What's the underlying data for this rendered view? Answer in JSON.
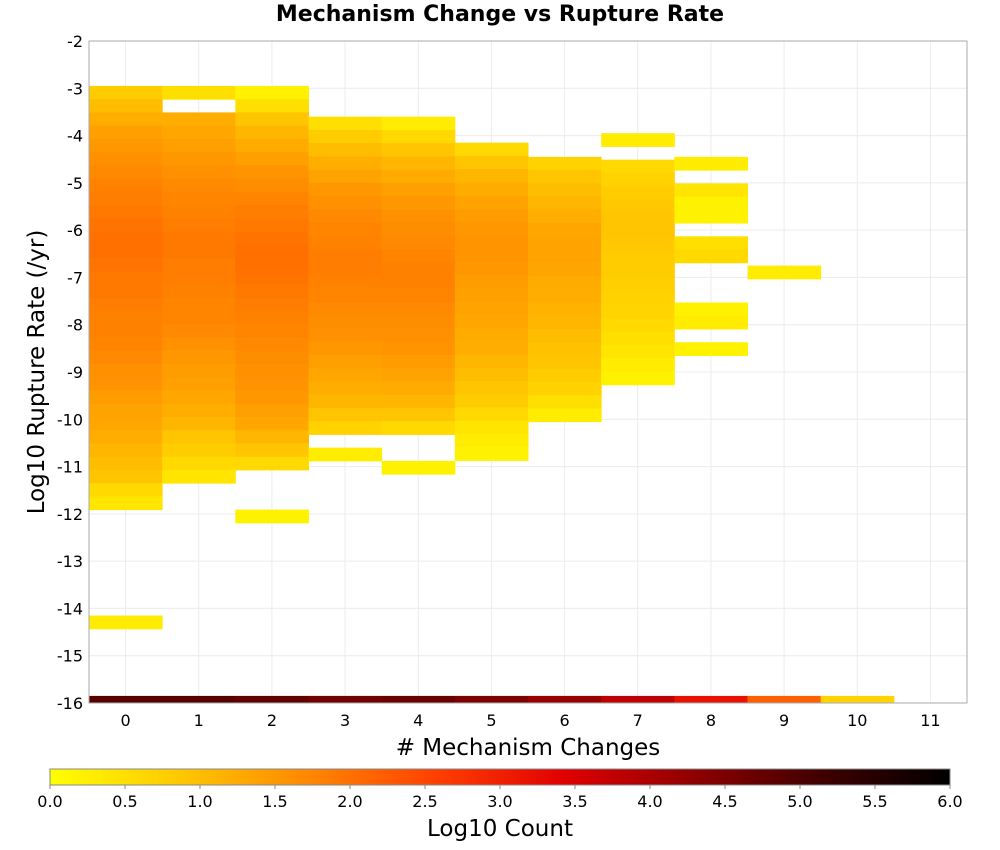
{
  "chart_data": {
    "type": "heatmap",
    "title": "Mechanism Change vs Rupture Rate",
    "xlabel": "# Mechanism Changes",
    "ylabel": "Log10 Rupture Rate (/yr)",
    "xlim": [
      -0.5,
      11.5
    ],
    "ylim": [
      -16,
      -2
    ],
    "x_ticks": [
      0,
      1,
      2,
      3,
      4,
      5,
      6,
      7,
      8,
      9,
      10,
      11
    ],
    "y_ticks": [
      -2,
      -3,
      -4,
      -5,
      -6,
      -7,
      -8,
      -9,
      -10,
      -11,
      -12,
      -13,
      -14,
      -15,
      -16
    ],
    "y_bin_size": 0.28,
    "grid": true,
    "colorbar": {
      "label": "Log10 Count",
      "range": [
        0,
        6
      ],
      "ticks": [
        "0.0",
        "0.5",
        "1.0",
        "1.5",
        "2.0",
        "2.5",
        "3.0",
        "3.5",
        "4.0",
        "4.5",
        "5.0",
        "5.5",
        "6.0"
      ],
      "colormap": [
        "#ffff00",
        "#ffc800",
        "#ff8800",
        "#ff4000",
        "#e00000",
        "#900000",
        "#400000",
        "#000000"
      ]
    },
    "columns": [
      {
        "x": 0,
        "y_top": -2.95,
        "values": [
          0.8,
          1.0,
          1.2,
          1.4,
          1.5,
          1.6,
          1.7,
          1.8,
          1.85,
          1.9,
          1.95,
          2.0,
          2.0,
          1.95,
          1.9,
          1.9,
          1.85,
          1.8,
          1.8,
          1.75,
          1.7,
          1.6,
          1.55,
          1.45,
          1.35,
          1.3,
          1.2,
          1.1,
          1.0,
          0.9,
          0.6,
          0.4,
          null,
          null,
          null,
          null,
          null,
          null,
          null,
          null,
          0.3
        ],
        "bottom_row": 4.9
      },
      {
        "x": 1,
        "y_top": -2.95,
        "values": [
          0.5,
          null,
          1.2,
          1.3,
          1.4,
          1.5,
          1.6,
          1.7,
          1.75,
          1.8,
          1.85,
          1.9,
          1.9,
          1.85,
          1.85,
          1.8,
          1.75,
          1.75,
          1.7,
          1.6,
          1.5,
          1.45,
          1.4,
          1.3,
          1.2,
          1.1,
          0.9,
          0.8,
          0.6,
          0.4
        ],
        "bottom_row": 4.9
      },
      {
        "x": 2,
        "y_top": -2.95,
        "values": [
          0.2,
          0.5,
          0.9,
          1.1,
          1.25,
          1.4,
          1.55,
          1.65,
          1.75,
          1.85,
          1.9,
          1.95,
          2.0,
          2.0,
          1.95,
          1.9,
          1.85,
          1.8,
          1.75,
          1.7,
          1.65,
          1.6,
          1.55,
          1.5,
          1.4,
          1.3,
          1.1,
          0.9,
          0.6,
          null,
          null,
          null,
          0.2
        ],
        "bottom_row": 4.8
      },
      {
        "x": 3,
        "y_top": -3.6,
        "values": [
          0.5,
          0.8,
          1.0,
          1.2,
          1.35,
          1.5,
          1.6,
          1.7,
          1.75,
          1.8,
          1.85,
          1.85,
          1.8,
          1.75,
          1.7,
          1.65,
          1.6,
          1.5,
          1.4,
          1.3,
          1.2,
          1.1,
          0.9,
          0.7,
          null,
          0.3
        ],
        "bottom_row": 4.6
      },
      {
        "x": 4,
        "y_top": -3.6,
        "values": [
          0.3,
          0.6,
          0.9,
          1.1,
          1.25,
          1.4,
          1.5,
          1.6,
          1.65,
          1.7,
          1.75,
          1.8,
          1.8,
          1.75,
          1.7,
          1.65,
          1.6,
          1.55,
          1.45,
          1.35,
          1.25,
          1.1,
          0.9,
          0.6,
          null,
          null,
          0.2
        ],
        "bottom_row": 4.7
      },
      {
        "x": 5,
        "y_top": -4.15,
        "values": [
          0.6,
          0.9,
          1.1,
          1.25,
          1.35,
          1.45,
          1.5,
          1.55,
          1.55,
          1.5,
          1.45,
          1.4,
          1.35,
          1.3,
          1.25,
          1.2,
          1.1,
          1.0,
          0.9,
          0.8,
          0.6,
          0.4,
          0.3,
          0.2
        ],
        "bottom_row": 4.5
      },
      {
        "x": 6,
        "y_top": -4.45,
        "values": [
          0.7,
          0.9,
          1.0,
          1.1,
          1.2,
          1.3,
          1.35,
          1.35,
          1.3,
          1.25,
          1.2,
          1.15,
          1.1,
          1.0,
          0.95,
          0.9,
          0.8,
          0.7,
          0.5,
          0.3
        ],
        "bottom_row": 4.2
      },
      {
        "x": 7,
        "y_top": -3.95,
        "values": [
          0.3,
          null,
          0.6,
          0.7,
          0.8,
          0.85,
          0.9,
          0.9,
          0.85,
          0.8,
          0.8,
          0.75,
          0.7,
          0.65,
          0.6,
          0.5,
          0.4,
          0.3,
          0.2
        ],
        "bottom_row": 3.8
      },
      {
        "x": 8,
        "y_top": -4.45,
        "values": [
          0.3,
          null,
          0.4,
          0.2,
          0.2,
          null,
          0.5,
          0.6,
          null,
          null,
          null,
          0.2,
          0.3,
          null,
          0.2
        ],
        "bottom_row": 3.2
      },
      {
        "x": 9,
        "y_top": -6.75,
        "values": [
          0.3
        ],
        "bottom_row": 2.2
      },
      {
        "x": 10,
        "y_top": null,
        "values": [],
        "bottom_row": 0.7
      }
    ]
  }
}
